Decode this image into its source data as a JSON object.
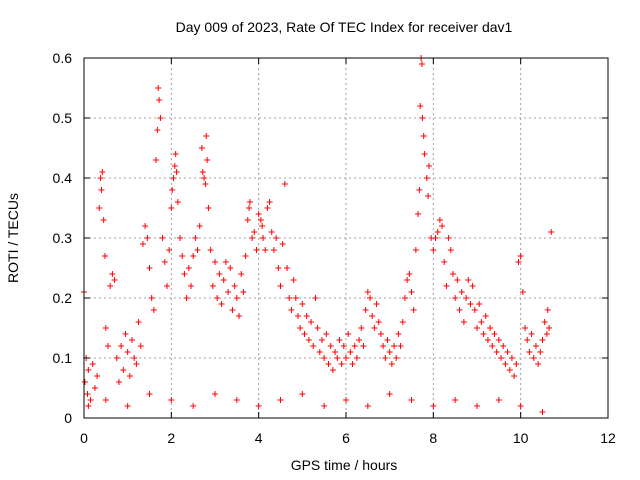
{
  "chart_data": {
    "type": "scatter",
    "title": "Day 009 of 2023, Rate Of TEC Index for receiver dav1",
    "xlabel": "GPS time / hours",
    "ylabel": "ROTI / TECUs",
    "xlim": [
      0,
      12
    ],
    "ylim": [
      0,
      0.6
    ],
    "xticks": [
      0,
      2,
      4,
      6,
      8,
      10,
      12
    ],
    "xtick_labels": [
      "0",
      "2",
      "4",
      "6",
      "8",
      "10",
      "12"
    ],
    "yticks": [
      0,
      0.1,
      0.2,
      0.3,
      0.4,
      0.5,
      0.6
    ],
    "ytick_labels": [
      "0",
      "0.1",
      "0.2",
      "0.3",
      "0.4",
      "0.5",
      "0.6"
    ],
    "grid": true,
    "marker": "plus",
    "color": "#ff0000",
    "points": [
      [
        0.0,
        0.21
      ],
      [
        0.02,
        0.06
      ],
      [
        0.05,
        0.1
      ],
      [
        0.08,
        0.04
      ],
      [
        0.1,
        0.08
      ],
      [
        0.15,
        0.03
      ],
      [
        0.2,
        0.09
      ],
      [
        0.25,
        0.05
      ],
      [
        0.3,
        0.07
      ],
      [
        0.35,
        0.35
      ],
      [
        0.38,
        0.4
      ],
      [
        0.4,
        0.38
      ],
      [
        0.42,
        0.41
      ],
      [
        0.45,
        0.33
      ],
      [
        0.48,
        0.27
      ],
      [
        0.5,
        0.15
      ],
      [
        0.55,
        0.12
      ],
      [
        0.6,
        0.22
      ],
      [
        0.65,
        0.24
      ],
      [
        0.7,
        0.23
      ],
      [
        0.75,
        0.1
      ],
      [
        0.8,
        0.06
      ],
      [
        0.85,
        0.12
      ],
      [
        0.9,
        0.08
      ],
      [
        0.95,
        0.14
      ],
      [
        1.0,
        0.11
      ],
      [
        1.05,
        0.07
      ],
      [
        1.1,
        0.13
      ],
      [
        1.15,
        0.1
      ],
      [
        1.2,
        0.09
      ],
      [
        1.25,
        0.16
      ],
      [
        1.3,
        0.12
      ],
      [
        1.35,
        0.29
      ],
      [
        1.4,
        0.32
      ],
      [
        1.45,
        0.3
      ],
      [
        1.5,
        0.25
      ],
      [
        1.55,
        0.2
      ],
      [
        1.6,
        0.18
      ],
      [
        1.65,
        0.43
      ],
      [
        1.68,
        0.48
      ],
      [
        1.7,
        0.55
      ],
      [
        1.72,
        0.53
      ],
      [
        1.75,
        0.5
      ],
      [
        1.8,
        0.3
      ],
      [
        1.85,
        0.26
      ],
      [
        1.9,
        0.22
      ],
      [
        1.95,
        0.28
      ],
      [
        2.0,
        0.35
      ],
      [
        2.02,
        0.38
      ],
      [
        2.05,
        0.4
      ],
      [
        2.08,
        0.42
      ],
      [
        2.1,
        0.44
      ],
      [
        2.12,
        0.41
      ],
      [
        2.15,
        0.36
      ],
      [
        2.2,
        0.3
      ],
      [
        2.25,
        0.27
      ],
      [
        2.3,
        0.24
      ],
      [
        2.35,
        0.2
      ],
      [
        2.4,
        0.25
      ],
      [
        2.45,
        0.22
      ],
      [
        2.5,
        0.27
      ],
      [
        2.55,
        0.3
      ],
      [
        2.6,
        0.28
      ],
      [
        2.65,
        0.32
      ],
      [
        2.7,
        0.45
      ],
      [
        2.72,
        0.41
      ],
      [
        2.75,
        0.4
      ],
      [
        2.78,
        0.39
      ],
      [
        2.8,
        0.47
      ],
      [
        2.82,
        0.43
      ],
      [
        2.85,
        0.35
      ],
      [
        2.9,
        0.28
      ],
      [
        2.95,
        0.22
      ],
      [
        3.0,
        0.26
      ],
      [
        3.05,
        0.2
      ],
      [
        3.1,
        0.24
      ],
      [
        3.15,
        0.19
      ],
      [
        3.2,
        0.23
      ],
      [
        3.25,
        0.26
      ],
      [
        3.3,
        0.21
      ],
      [
        3.35,
        0.25
      ],
      [
        3.4,
        0.18
      ],
      [
        3.45,
        0.22
      ],
      [
        3.5,
        0.2
      ],
      [
        3.55,
        0.17
      ],
      [
        3.6,
        0.24
      ],
      [
        3.65,
        0.21
      ],
      [
        3.7,
        0.27
      ],
      [
        3.75,
        0.33
      ],
      [
        3.78,
        0.35
      ],
      [
        3.8,
        0.36
      ],
      [
        3.85,
        0.3
      ],
      [
        3.9,
        0.31
      ],
      [
        3.95,
        0.28
      ],
      [
        4.0,
        0.34
      ],
      [
        4.05,
        0.33
      ],
      [
        4.08,
        0.32
      ],
      [
        4.1,
        0.3
      ],
      [
        4.15,
        0.28
      ],
      [
        4.2,
        0.35
      ],
      [
        4.25,
        0.36
      ],
      [
        4.3,
        0.31
      ],
      [
        4.35,
        0.28
      ],
      [
        4.4,
        0.3
      ],
      [
        4.45,
        0.25
      ],
      [
        4.5,
        0.22
      ],
      [
        4.55,
        0.29
      ],
      [
        4.6,
        0.39
      ],
      [
        4.65,
        0.25
      ],
      [
        4.7,
        0.2
      ],
      [
        4.75,
        0.18
      ],
      [
        4.8,
        0.23
      ],
      [
        4.85,
        0.2
      ],
      [
        4.9,
        0.17
      ],
      [
        4.95,
        0.15
      ],
      [
        5.0,
        0.19
      ],
      [
        5.05,
        0.14
      ],
      [
        5.1,
        0.17
      ],
      [
        5.15,
        0.13
      ],
      [
        5.2,
        0.16
      ],
      [
        5.25,
        0.12
      ],
      [
        5.3,
        0.2
      ],
      [
        5.35,
        0.15
      ],
      [
        5.4,
        0.11
      ],
      [
        5.45,
        0.13
      ],
      [
        5.5,
        0.1
      ],
      [
        5.55,
        0.14
      ],
      [
        5.6,
        0.09
      ],
      [
        5.65,
        0.12
      ],
      [
        5.7,
        0.08
      ],
      [
        5.75,
        0.11
      ],
      [
        5.8,
        0.1
      ],
      [
        5.85,
        0.13
      ],
      [
        5.9,
        0.09
      ],
      [
        5.95,
        0.12
      ],
      [
        6.0,
        0.1
      ],
      [
        6.05,
        0.14
      ],
      [
        6.1,
        0.11
      ],
      [
        6.15,
        0.09
      ],
      [
        6.2,
        0.12
      ],
      [
        6.25,
        0.1
      ],
      [
        6.3,
        0.13
      ],
      [
        6.35,
        0.15
      ],
      [
        6.4,
        0.12
      ],
      [
        6.45,
        0.18
      ],
      [
        6.5,
        0.21
      ],
      [
        6.55,
        0.2
      ],
      [
        6.6,
        0.17
      ],
      [
        6.65,
        0.15
      ],
      [
        6.7,
        0.19
      ],
      [
        6.75,
        0.16
      ],
      [
        6.8,
        0.14
      ],
      [
        6.85,
        0.12
      ],
      [
        6.9,
        0.1
      ],
      [
        6.95,
        0.13
      ],
      [
        7.0,
        0.11
      ],
      [
        7.05,
        0.09
      ],
      [
        7.1,
        0.12
      ],
      [
        7.15,
        0.1
      ],
      [
        7.2,
        0.14
      ],
      [
        7.25,
        0.12
      ],
      [
        7.3,
        0.16
      ],
      [
        7.35,
        0.2
      ],
      [
        7.4,
        0.23
      ],
      [
        7.45,
        0.24
      ],
      [
        7.5,
        0.21
      ],
      [
        7.55,
        0.18
      ],
      [
        7.6,
        0.28
      ],
      [
        7.65,
        0.34
      ],
      [
        7.68,
        0.38
      ],
      [
        7.7,
        0.52
      ],
      [
        7.72,
        0.6
      ],
      [
        7.74,
        0.59
      ],
      [
        7.75,
        0.5
      ],
      [
        7.78,
        0.47
      ],
      [
        7.8,
        0.44
      ],
      [
        7.85,
        0.4
      ],
      [
        7.88,
        0.37
      ],
      [
        7.9,
        0.42
      ],
      [
        7.95,
        0.3
      ],
      [
        8.0,
        0.28
      ],
      [
        8.05,
        0.3
      ],
      [
        8.1,
        0.31
      ],
      [
        8.15,
        0.33
      ],
      [
        8.2,
        0.32
      ],
      [
        8.25,
        0.26
      ],
      [
        8.3,
        0.22
      ],
      [
        8.35,
        0.3
      ],
      [
        8.4,
        0.28
      ],
      [
        8.45,
        0.24
      ],
      [
        8.5,
        0.2
      ],
      [
        8.55,
        0.23
      ],
      [
        8.6,
        0.18
      ],
      [
        8.65,
        0.21
      ],
      [
        8.7,
        0.16
      ],
      [
        8.75,
        0.2
      ],
      [
        8.8,
        0.23
      ],
      [
        8.85,
        0.19
      ],
      [
        8.9,
        0.22
      ],
      [
        8.95,
        0.18
      ],
      [
        9.0,
        0.15
      ],
      [
        9.05,
        0.19
      ],
      [
        9.1,
        0.16
      ],
      [
        9.15,
        0.14
      ],
      [
        9.2,
        0.17
      ],
      [
        9.25,
        0.13
      ],
      [
        9.3,
        0.15
      ],
      [
        9.35,
        0.12
      ],
      [
        9.4,
        0.14
      ],
      [
        9.45,
        0.11
      ],
      [
        9.5,
        0.13
      ],
      [
        9.55,
        0.1
      ],
      [
        9.6,
        0.12
      ],
      [
        9.65,
        0.09
      ],
      [
        9.7,
        0.11
      ],
      [
        9.75,
        0.08
      ],
      [
        9.8,
        0.1
      ],
      [
        9.85,
        0.07
      ],
      [
        9.9,
        0.09
      ],
      [
        9.95,
        0.26
      ],
      [
        10.0,
        0.27
      ],
      [
        10.05,
        0.21
      ],
      [
        10.1,
        0.15
      ],
      [
        10.15,
        0.13
      ],
      [
        10.2,
        0.11
      ],
      [
        10.25,
        0.14
      ],
      [
        10.3,
        0.1
      ],
      [
        10.35,
        0.12
      ],
      [
        10.4,
        0.09
      ],
      [
        10.45,
        0.11
      ],
      [
        10.5,
        0.13
      ],
      [
        10.55,
        0.16
      ],
      [
        10.6,
        0.14
      ],
      [
        10.62,
        0.18
      ],
      [
        10.65,
        0.15
      ],
      [
        10.7,
        0.31
      ],
      [
        0.1,
        0.02
      ],
      [
        0.5,
        0.03
      ],
      [
        1.0,
        0.02
      ],
      [
        1.5,
        0.04
      ],
      [
        2.0,
        0.03
      ],
      [
        2.5,
        0.02
      ],
      [
        3.0,
        0.04
      ],
      [
        3.5,
        0.03
      ],
      [
        4.0,
        0.02
      ],
      [
        4.5,
        0.03
      ],
      [
        5.0,
        0.04
      ],
      [
        5.5,
        0.02
      ],
      [
        6.0,
        0.03
      ],
      [
        6.5,
        0.02
      ],
      [
        7.0,
        0.04
      ],
      [
        7.5,
        0.03
      ],
      [
        8.0,
        0.02
      ],
      [
        8.5,
        0.03
      ],
      [
        9.0,
        0.02
      ],
      [
        9.5,
        0.03
      ],
      [
        10.0,
        0.02
      ],
      [
        10.5,
        0.01
      ]
    ]
  }
}
